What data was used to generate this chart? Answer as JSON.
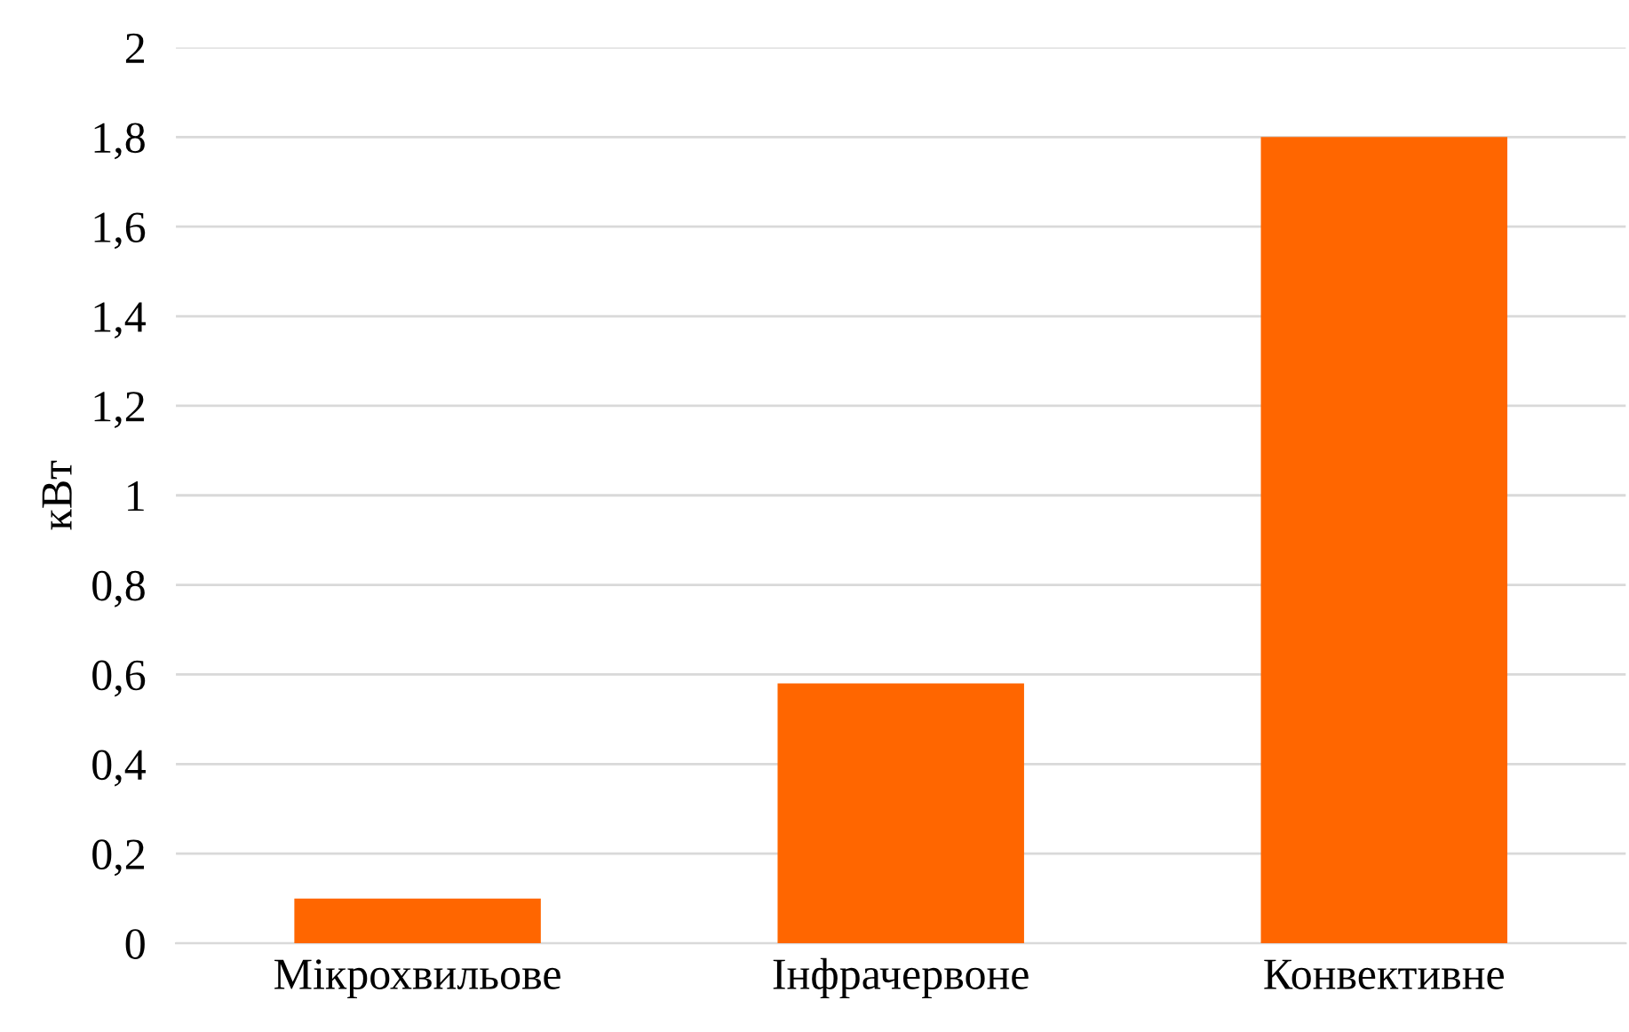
{
  "chart_data": {
    "type": "bar",
    "ylabel": "кВт",
    "categories": [
      "Мікрохвильове",
      "Інфрачервоне",
      "Конвективне"
    ],
    "values": [
      0.1,
      0.58,
      1.8
    ],
    "color": "#ff6600",
    "ylim": [
      0,
      2
    ],
    "yticks": [
      0,
      {
        "value": 0.2,
        "label": "0,2"
      },
      {
        "value": 0.4,
        "label": "0,4"
      },
      {
        "value": 0.6,
        "label": "0,6"
      },
      {
        "value": 0.8,
        "label": "0,8"
      },
      1,
      {
        "value": 1.2,
        "label": "1,2"
      },
      {
        "value": 1.4,
        "label": "1,4"
      },
      {
        "value": 1.6,
        "label": "1,6"
      },
      {
        "value": 1.8,
        "label": "1,8"
      },
      2
    ],
    "grid": "y",
    "legend": false
  }
}
